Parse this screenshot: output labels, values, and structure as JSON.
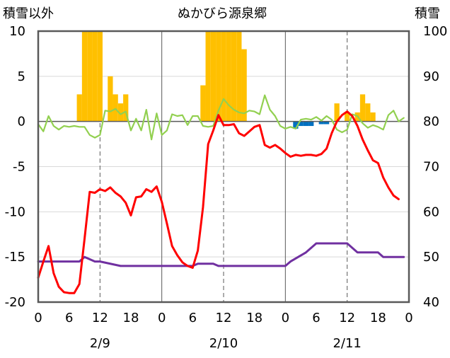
{
  "chart_data": {
    "type": "bar+line",
    "title": "ぬかびら源泉郷",
    "left_axis_label": "積雪以外",
    "right_axis_label": "積雪",
    "left_axis": {
      "range": [
        -20,
        10
      ],
      "ticks": [
        "10",
        "5",
        "0",
        "-5",
        "-10",
        "-15",
        "-20"
      ]
    },
    "right_axis": {
      "range": [
        40,
        100
      ],
      "ticks": [
        "100",
        "90",
        "80",
        "70",
        "60",
        "50",
        "40"
      ]
    },
    "x_hours_range": [
      0,
      72
    ],
    "x_tick_labels": [
      "0",
      "6",
      "12",
      "18",
      "0",
      "6",
      "12",
      "18",
      "0",
      "6",
      "12",
      "18",
      "0"
    ],
    "date_labels": [
      "2/9",
      "2/10",
      "2/11"
    ],
    "grid": "dashed verticals at 12h, solid day dividers",
    "colors": {
      "precip": "#FFC000",
      "precip_blue": "#0070C0",
      "temperature": "#FF0000",
      "wind": "#92D050",
      "snow_depth": "#7030A0"
    },
    "series": {
      "precip_bars": [
        [
          8,
          3
        ],
        [
          9,
          10
        ],
        [
          10,
          10
        ],
        [
          11,
          10
        ],
        [
          12,
          10
        ],
        [
          14,
          5
        ],
        [
          15,
          3
        ],
        [
          16,
          2
        ],
        [
          17,
          3
        ],
        [
          32,
          4
        ],
        [
          33,
          10
        ],
        [
          34,
          10
        ],
        [
          35,
          10
        ],
        [
          36,
          10
        ],
        [
          37,
          10
        ],
        [
          38,
          10
        ],
        [
          39,
          10
        ],
        [
          40,
          8
        ],
        [
          58,
          2
        ],
        [
          60,
          1
        ],
        [
          62,
          1
        ],
        [
          63,
          3
        ],
        [
          64,
          2
        ],
        [
          65,
          1
        ]
      ],
      "precip_blue_bars": [
        [
          50,
          -0.8
        ],
        [
          51,
          -0.5
        ],
        [
          52,
          -0.5
        ],
        [
          53,
          -0.5
        ],
        [
          55,
          -0.3
        ],
        [
          56,
          -0.3
        ]
      ],
      "temperature": [
        [
          0,
          -17.3
        ],
        [
          1,
          -15.5
        ],
        [
          2,
          -13.8
        ],
        [
          3,
          -16.8
        ],
        [
          4,
          -18.3
        ],
        [
          5,
          -18.9
        ],
        [
          6,
          -19
        ],
        [
          7,
          -19
        ],
        [
          8,
          -18
        ],
        [
          9,
          -13
        ],
        [
          10,
          -7.8
        ],
        [
          11,
          -7.9
        ],
        [
          12,
          -7.5
        ],
        [
          13,
          -7.7
        ],
        [
          14,
          -7.3
        ],
        [
          15,
          -7.9
        ],
        [
          16,
          -8.3
        ],
        [
          17,
          -9
        ],
        [
          18,
          -10.4
        ],
        [
          19,
          -8.4
        ],
        [
          20,
          -8.3
        ],
        [
          21,
          -7.5
        ],
        [
          22,
          -7.8
        ],
        [
          23,
          -7.2
        ],
        [
          24,
          -8.9
        ],
        [
          25,
          -11.3
        ],
        [
          26,
          -13.8
        ],
        [
          27,
          -14.8
        ],
        [
          28,
          -15.6
        ],
        [
          29,
          -16
        ],
        [
          30,
          -16.2
        ],
        [
          31,
          -14.3
        ],
        [
          32,
          -9.5
        ],
        [
          33,
          -2.5
        ],
        [
          34,
          -1
        ],
        [
          35,
          0.7
        ],
        [
          36,
          -0.4
        ],
        [
          37,
          -0.4
        ],
        [
          38,
          -0.3
        ],
        [
          39,
          -1.3
        ],
        [
          40,
          -1.6
        ],
        [
          41,
          -1.1
        ],
        [
          42,
          -0.6
        ],
        [
          43,
          -0.4
        ],
        [
          44,
          -2.6
        ],
        [
          45,
          -2.9
        ],
        [
          46,
          -2.6
        ],
        [
          47,
          -3
        ],
        [
          48,
          -3.5
        ],
        [
          49,
          -3.9
        ],
        [
          50,
          -3.7
        ],
        [
          51,
          -3.8
        ],
        [
          52,
          -3.7
        ],
        [
          53,
          -3.7
        ],
        [
          54,
          -3.8
        ],
        [
          55,
          -3.6
        ],
        [
          56,
          -3
        ],
        [
          57,
          -1.3
        ],
        [
          58,
          0
        ],
        [
          59,
          0.7
        ],
        [
          60,
          1.1
        ],
        [
          61,
          0.6
        ],
        [
          62,
          -0.5
        ],
        [
          63,
          -2
        ],
        [
          64,
          -3.2
        ],
        [
          65,
          -4.3
        ],
        [
          66,
          -4.6
        ],
        [
          67,
          -6.2
        ],
        [
          68,
          -7.3
        ],
        [
          69,
          -8.2
        ],
        [
          70,
          -8.6
        ]
      ],
      "wind": [
        [
          0,
          -0.3
        ],
        [
          1,
          -1.1
        ],
        [
          2,
          0.6
        ],
        [
          3,
          -0.5
        ],
        [
          4,
          -0.9
        ],
        [
          5,
          -0.5
        ],
        [
          6,
          -0.6
        ],
        [
          7,
          -0.5
        ],
        [
          8,
          -0.6
        ],
        [
          9,
          -0.6
        ],
        [
          10,
          -1.5
        ],
        [
          11,
          -1.8
        ],
        [
          12,
          -1.5
        ],
        [
          13,
          1.2
        ],
        [
          14,
          1.1
        ],
        [
          15,
          1.4
        ],
        [
          16,
          0.8
        ],
        [
          17,
          1.1
        ],
        [
          18,
          -1
        ],
        [
          19,
          0.3
        ],
        [
          20,
          -1
        ],
        [
          21,
          1.3
        ],
        [
          22,
          -2
        ],
        [
          23,
          0.9
        ],
        [
          24,
          -1.5
        ],
        [
          25,
          -1
        ],
        [
          26,
          0.8
        ],
        [
          27,
          0.6
        ],
        [
          28,
          0.7
        ],
        [
          29,
          -0.4
        ],
        [
          30,
          0.6
        ],
        [
          31,
          0.6
        ],
        [
          32,
          -0.5
        ],
        [
          33,
          -0.6
        ],
        [
          34,
          -0.5
        ],
        [
          35,
          1.2
        ],
        [
          36,
          2.5
        ],
        [
          37,
          1.8
        ],
        [
          38,
          1.3
        ],
        [
          39,
          1
        ],
        [
          40,
          0.9
        ],
        [
          41,
          1.2
        ],
        [
          42,
          1.1
        ],
        [
          43,
          0.8
        ],
        [
          44,
          2.9
        ],
        [
          45,
          1.3
        ],
        [
          46,
          0.6
        ],
        [
          47,
          -0.5
        ],
        [
          48,
          -0.8
        ],
        [
          49,
          -0.6
        ],
        [
          50,
          -0.8
        ],
        [
          51,
          0.2
        ],
        [
          52,
          0.3
        ],
        [
          53,
          0.2
        ],
        [
          54,
          0.5
        ],
        [
          55,
          0.1
        ],
        [
          56,
          0.6
        ],
        [
          57,
          0.2
        ],
        [
          58,
          -0.9
        ],
        [
          59,
          -1.2
        ],
        [
          60,
          -0.9
        ],
        [
          61,
          0.8
        ],
        [
          62,
          0.6
        ],
        [
          63,
          -0.2
        ],
        [
          64,
          -0.7
        ],
        [
          65,
          -0.4
        ],
        [
          66,
          -0.6
        ],
        [
          67,
          -0.9
        ],
        [
          68,
          0.7
        ],
        [
          69,
          1.2
        ],
        [
          70,
          0
        ],
        [
          71,
          0.4
        ]
      ],
      "snow_depth": [
        [
          0,
          49
        ],
        [
          8,
          49
        ],
        [
          9,
          50
        ],
        [
          10,
          49.5
        ],
        [
          11,
          49
        ],
        [
          12,
          49
        ],
        [
          16,
          48
        ],
        [
          30,
          48
        ],
        [
          31,
          48.5
        ],
        [
          34,
          48.5
        ],
        [
          35,
          48
        ],
        [
          48,
          48
        ],
        [
          49,
          49
        ],
        [
          52,
          51
        ],
        [
          53,
          52
        ],
        [
          54,
          53
        ],
        [
          56,
          53
        ],
        [
          57,
          53
        ],
        [
          60,
          53
        ],
        [
          62,
          51
        ],
        [
          66,
          51
        ],
        [
          67,
          50
        ],
        [
          71,
          50
        ]
      ]
    }
  }
}
